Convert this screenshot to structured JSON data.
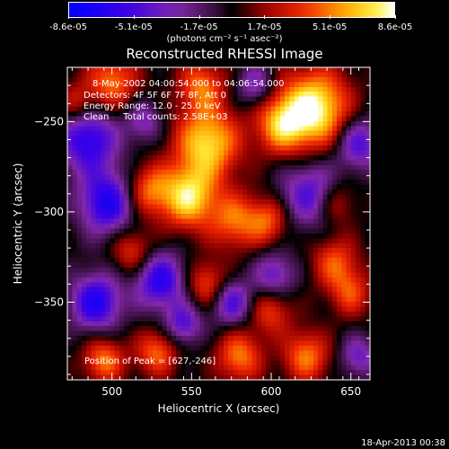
{
  "colorbar": {
    "ticks": [
      "-8.6e-05",
      "-5.1e-05",
      "-1.7e-05",
      "1.7e-05",
      "5.1e-05",
      "8.6e-05"
    ],
    "unit_label": "(photons cm⁻² s⁻¹ asec⁻²)",
    "min": -8.6e-05,
    "max": 8.6e-05
  },
  "annotations": {
    "time_range": "8-May-2002 04:00:54.000 to 04:06:54.000",
    "detectors": "Detectors: 4F 5F 6F 7F 8F, Att 0",
    "energy_range": "Energy Range: 12.0 - 25.0 keV",
    "clean_info": "Clean     Total counts: 2.58E+03",
    "peak_position": "Position of Peak = [627,-246]"
  },
  "timestamp": "18-Apr-2013 00:38",
  "chart_data": {
    "type": "heatmap",
    "title": "Reconstructed RHESSI Image",
    "xlabel": "Heliocentric X (arcsec)",
    "ylabel": "Heliocentric Y (arcsec)",
    "xlim": [
      472,
      662
    ],
    "ylim": [
      -393,
      -220
    ],
    "x_ticks": [
      500,
      550,
      600,
      650
    ],
    "y_ticks": [
      -250,
      -300,
      -350
    ],
    "colormap": "rainbow-hot (blue-purple-black-red-yellow-white)",
    "peak": [
      627,
      -246
    ],
    "blobs": [
      {
        "x": 627,
        "y": -243,
        "amp": 1.0,
        "w": 15
      },
      {
        "x": 560,
        "y": -262,
        "amp": 0.85,
        "w": 14
      },
      {
        "x": 548,
        "y": -292,
        "amp": 0.85,
        "w": 12
      },
      {
        "x": 606,
        "y": -252,
        "amp": 0.65,
        "w": 11
      },
      {
        "x": 500,
        "y": -228,
        "amp": 0.6,
        "w": 11
      },
      {
        "x": 523,
        "y": -288,
        "amp": 0.55,
        "w": 10
      },
      {
        "x": 577,
        "y": -305,
        "amp": 0.55,
        "w": 11
      },
      {
        "x": 598,
        "y": -305,
        "amp": 0.5,
        "w": 9
      },
      {
        "x": 556,
        "y": -230,
        "amp": 0.55,
        "w": 10
      },
      {
        "x": 513,
        "y": -322,
        "amp": 0.45,
        "w": 9
      },
      {
        "x": 640,
        "y": -328,
        "amp": 0.5,
        "w": 10
      },
      {
        "x": 495,
        "y": -382,
        "amp": 0.6,
        "w": 9
      },
      {
        "x": 528,
        "y": -378,
        "amp": 0.55,
        "w": 9
      },
      {
        "x": 580,
        "y": -380,
        "amp": 0.6,
        "w": 10
      },
      {
        "x": 622,
        "y": -380,
        "amp": 0.6,
        "w": 10
      },
      {
        "x": 650,
        "y": -345,
        "amp": 0.45,
        "w": 9
      },
      {
        "x": 560,
        "y": -340,
        "amp": 0.5,
        "w": 9
      },
      {
        "x": 600,
        "y": -355,
        "amp": 0.45,
        "w": 9
      },
      {
        "x": 640,
        "y": -295,
        "amp": 0.4,
        "w": 9
      },
      {
        "x": 478,
        "y": -240,
        "amp": 0.4,
        "w": 8
      },
      {
        "x": 485,
        "y": -260,
        "amp": -0.75,
        "w": 13
      },
      {
        "x": 497,
        "y": -295,
        "amp": -0.8,
        "w": 12
      },
      {
        "x": 530,
        "y": -338,
        "amp": -0.75,
        "w": 11
      },
      {
        "x": 625,
        "y": -290,
        "amp": -0.6,
        "w": 13
      },
      {
        "x": 490,
        "y": -350,
        "amp": -0.8,
        "w": 11
      },
      {
        "x": 575,
        "y": -350,
        "amp": -0.6,
        "w": 9
      },
      {
        "x": 655,
        "y": -262,
        "amp": -0.6,
        "w": 10
      },
      {
        "x": 545,
        "y": -362,
        "amp": -0.55,
        "w": 8
      },
      {
        "x": 602,
        "y": -335,
        "amp": -0.5,
        "w": 9
      },
      {
        "x": 590,
        "y": -230,
        "amp": -0.45,
        "w": 8
      },
      {
        "x": 655,
        "y": -380,
        "amp": -0.45,
        "w": 8
      },
      {
        "x": 520,
        "y": -250,
        "amp": -0.4,
        "w": 8
      }
    ]
  }
}
